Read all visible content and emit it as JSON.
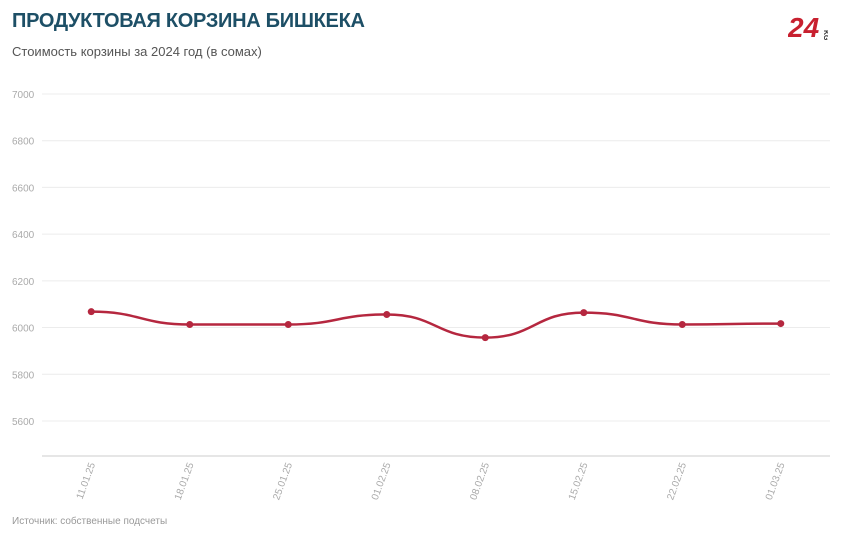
{
  "header": {
    "title": "ПРОДУКТОВАЯ КОРЗИНА БИШКЕКА",
    "subtitle": "Стоимость корзины за 2024 год (в сомах)",
    "logo_text": "24 KG"
  },
  "footer": {
    "source": "Источник: собственные подсчеты"
  },
  "colors": {
    "line": "#b5273f",
    "title": "#1d4f66",
    "logo": "#c8202f"
  },
  "chart_data": {
    "type": "line",
    "title": "ПРОДУКТОВАЯ КОРЗИНА БИШКЕКА",
    "subtitle": "Стоимость корзины за 2024 год (в сомах)",
    "xlabel": "",
    "ylabel": "",
    "categories": [
      "11.01.25",
      "18.01.25",
      "25.01.25",
      "01.02.25",
      "08.02.25",
      "15.02.25",
      "22.02.25",
      "01.03.25"
    ],
    "values": [
      6068,
      6013,
      6013,
      6056,
      5957,
      6064,
      6013,
      6017
    ],
    "ylim": [
      5450,
      7000
    ],
    "yticks": [
      5600,
      5800,
      6000,
      6200,
      6400,
      6600,
      6800,
      7000
    ],
    "grid": true,
    "smooth": true,
    "legend": "none"
  }
}
